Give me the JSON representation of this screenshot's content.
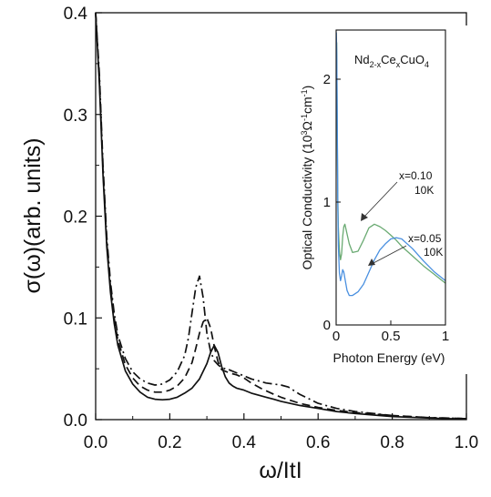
{
  "chart_data": [
    {
      "type": "line",
      "xlabel": "ω/ItI",
      "ylabel": "σ(ω)(arb. units)",
      "xlim": [
        0,
        1
      ],
      "ylim": [
        0,
        0.4
      ],
      "xticks": [
        "0.0",
        "0.2",
        "0.4",
        "0.6",
        "0.8",
        "1.0"
      ],
      "yticks": [
        "0.0",
        "0.1",
        "0.2",
        "0.3",
        "0.4"
      ],
      "grid": false,
      "series": [
        {
          "style": "solid",
          "color": "#111111",
          "x": [
            0.0,
            0.01,
            0.02,
            0.03,
            0.04,
            0.05,
            0.06,
            0.08,
            0.1,
            0.12,
            0.14,
            0.16,
            0.18,
            0.2,
            0.22,
            0.24,
            0.26,
            0.28,
            0.3,
            0.31,
            0.32,
            0.33,
            0.34,
            0.35,
            0.36,
            0.37,
            0.38,
            0.4,
            0.42,
            0.44,
            0.46,
            0.48,
            0.5,
            0.55,
            0.6,
            0.65,
            0.7,
            0.8,
            0.9,
            1.0
          ],
          "y": [
            0.4,
            0.33,
            0.24,
            0.17,
            0.125,
            0.095,
            0.073,
            0.048,
            0.035,
            0.027,
            0.022,
            0.02,
            0.0195,
            0.02,
            0.022,
            0.026,
            0.031,
            0.04,
            0.055,
            0.066,
            0.073,
            0.066,
            0.052,
            0.042,
            0.036,
            0.033,
            0.031,
            0.029,
            0.026,
            0.024,
            0.022,
            0.02,
            0.018,
            0.014,
            0.011,
            0.008,
            0.006,
            0.003,
            0.0015,
            0.0005
          ]
        },
        {
          "style": "dashed",
          "color": "#111111",
          "x": [
            0.0,
            0.01,
            0.02,
            0.03,
            0.04,
            0.05,
            0.06,
            0.08,
            0.1,
            0.12,
            0.14,
            0.16,
            0.18,
            0.2,
            0.22,
            0.24,
            0.26,
            0.27,
            0.28,
            0.29,
            0.3,
            0.31,
            0.32,
            0.33,
            0.34,
            0.36,
            0.38,
            0.4,
            0.42,
            0.45,
            0.48,
            0.5,
            0.55,
            0.6,
            0.65,
            0.7,
            0.8,
            0.9,
            1.0
          ],
          "y": [
            0.4,
            0.335,
            0.245,
            0.175,
            0.13,
            0.1,
            0.078,
            0.054,
            0.041,
            0.033,
            0.029,
            0.027,
            0.027,
            0.029,
            0.033,
            0.041,
            0.056,
            0.07,
            0.085,
            0.096,
            0.1,
            0.09,
            0.072,
            0.057,
            0.049,
            0.046,
            0.044,
            0.041,
            0.036,
            0.03,
            0.025,
            0.022,
            0.016,
            0.012,
            0.009,
            0.007,
            0.004,
            0.002,
            0.001
          ]
        },
        {
          "style": "dashdot",
          "color": "#111111",
          "x": [
            0.0,
            0.01,
            0.02,
            0.03,
            0.04,
            0.05,
            0.06,
            0.08,
            0.1,
            0.12,
            0.14,
            0.16,
            0.18,
            0.2,
            0.22,
            0.24,
            0.25,
            0.26,
            0.27,
            0.28,
            0.29,
            0.3,
            0.31,
            0.32,
            0.33,
            0.34,
            0.36,
            0.38,
            0.4,
            0.42,
            0.44,
            0.46,
            0.48,
            0.5,
            0.52,
            0.55,
            0.6,
            0.65,
            0.7,
            0.8,
            0.9,
            1.0
          ],
          "y": [
            0.4,
            0.34,
            0.25,
            0.18,
            0.135,
            0.105,
            0.083,
            0.06,
            0.047,
            0.04,
            0.036,
            0.034,
            0.035,
            0.039,
            0.047,
            0.063,
            0.08,
            0.105,
            0.13,
            0.141,
            0.12,
            0.085,
            0.067,
            0.058,
            0.054,
            0.051,
            0.049,
            0.046,
            0.043,
            0.04,
            0.038,
            0.036,
            0.035,
            0.034,
            0.032,
            0.025,
            0.016,
            0.011,
            0.008,
            0.004,
            0.002,
            0.001
          ]
        }
      ]
    },
    {
      "type": "line",
      "title": "Nd2-xCexCuO4",
      "xlabel": "Photon Energy (eV)",
      "ylabel": "Optical Conductivity (10³Ω⁻¹cm⁻¹)",
      "xlim": [
        0,
        1
      ],
      "ylim": [
        0,
        2.4
      ],
      "xticks": [
        "0",
        "0.5",
        "1"
      ],
      "yticks": [
        "0",
        "1",
        "2"
      ],
      "annotations": [
        {
          "line1": "x=0.10",
          "line2": "10K"
        },
        {
          "line1": "x=0.05",
          "line2": "10K"
        }
      ],
      "series": [
        {
          "color": "#6aaa72",
          "x": [
            0.005,
            0.01,
            0.015,
            0.02,
            0.03,
            0.04,
            0.05,
            0.06,
            0.07,
            0.08,
            0.1,
            0.12,
            0.15,
            0.2,
            0.25,
            0.3,
            0.35,
            0.4,
            0.45,
            0.5,
            0.55,
            0.6,
            0.7,
            0.8,
            0.9,
            1.0
          ],
          "y": [
            2.3,
            1.6,
            1.05,
            0.8,
            0.6,
            0.53,
            0.58,
            0.72,
            0.8,
            0.82,
            0.74,
            0.66,
            0.59,
            0.6,
            0.69,
            0.79,
            0.82,
            0.8,
            0.77,
            0.73,
            0.69,
            0.64,
            0.56,
            0.48,
            0.41,
            0.34
          ]
        },
        {
          "color": "#4a90e0",
          "x": [
            0.002,
            0.006,
            0.01,
            0.015,
            0.02,
            0.03,
            0.04,
            0.05,
            0.06,
            0.07,
            0.08,
            0.1,
            0.12,
            0.15,
            0.2,
            0.25,
            0.3,
            0.35,
            0.4,
            0.45,
            0.5,
            0.55,
            0.6,
            0.7,
            0.8,
            0.9,
            1.0
          ],
          "y": [
            2.38,
            2.2,
            1.7,
            1.0,
            0.65,
            0.42,
            0.36,
            0.4,
            0.45,
            0.43,
            0.38,
            0.28,
            0.24,
            0.24,
            0.27,
            0.33,
            0.43,
            0.53,
            0.61,
            0.66,
            0.7,
            0.71,
            0.7,
            0.62,
            0.52,
            0.43,
            0.36
          ]
        }
      ]
    }
  ]
}
